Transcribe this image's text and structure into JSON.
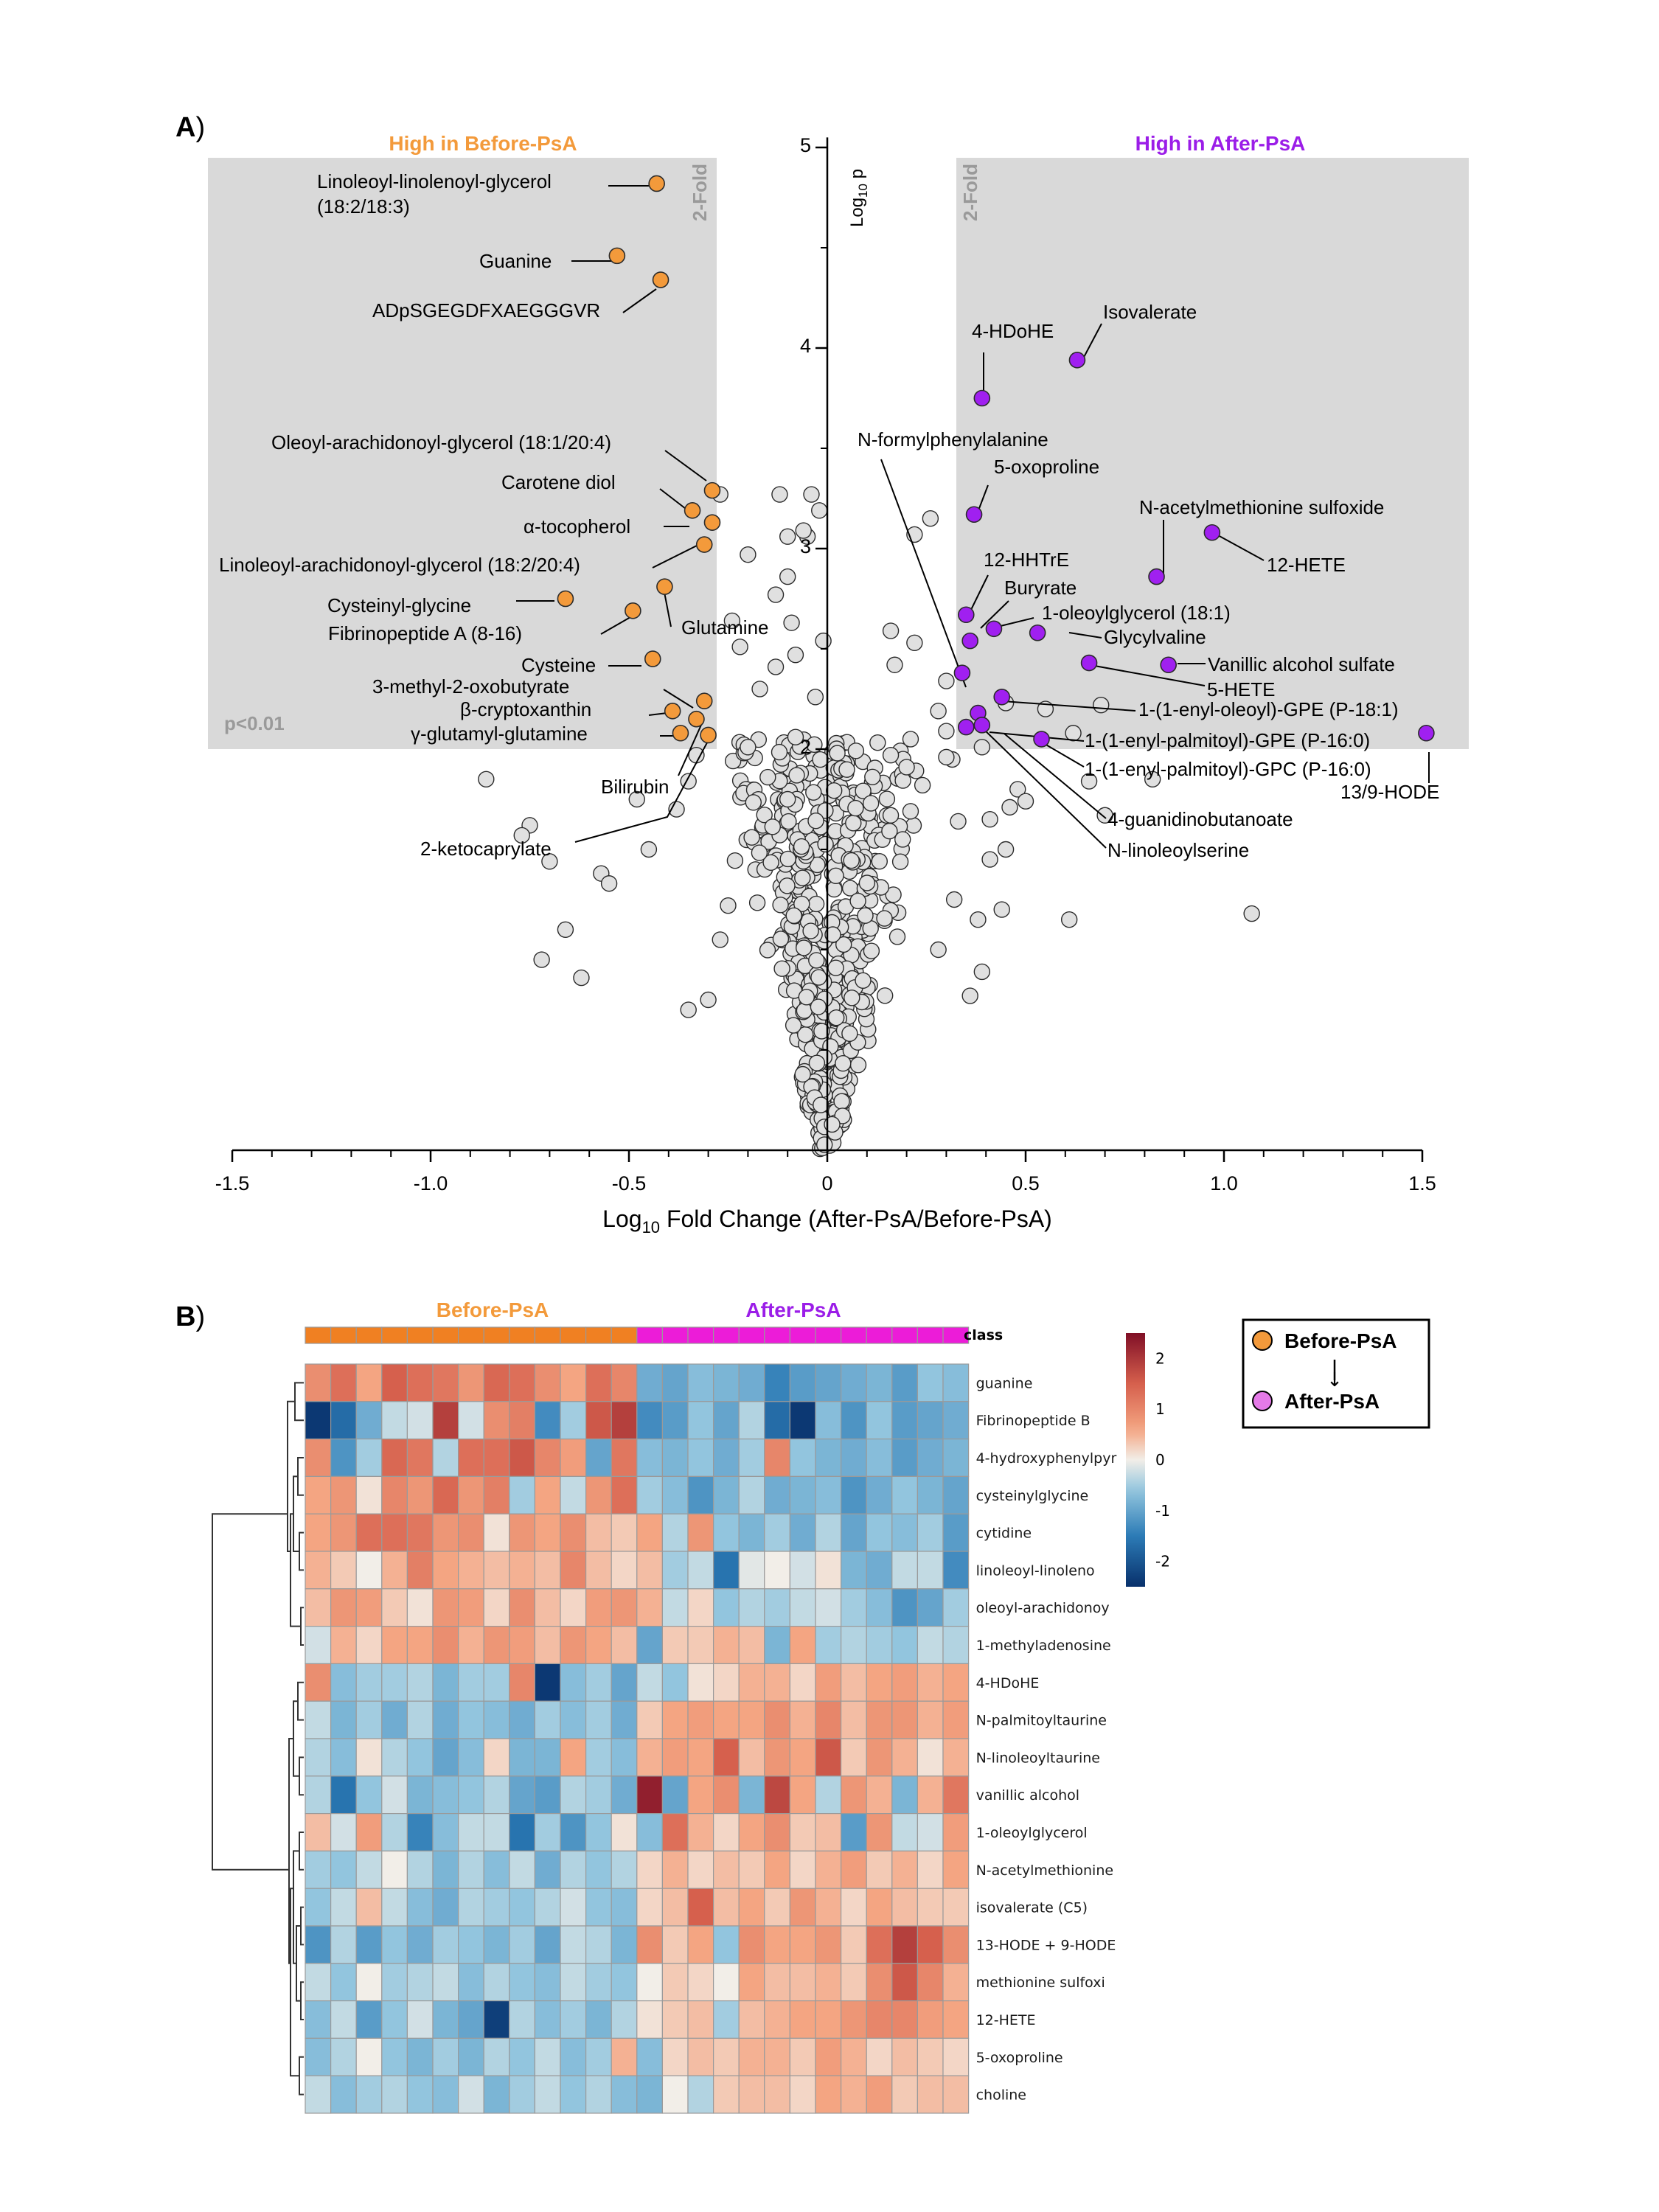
{
  "panel_a_label": "A",
  "panel_b_label": "B",
  "chart_data": [
    {
      "type": "scatter",
      "subtype": "volcano",
      "x_axis": {
        "label_prefix": "Log",
        "label_sub": "10",
        "label_suffix": " Fold Change (After-PsA/Before-PsA)",
        "ticks": [
          -1.5,
          -1.0,
          -0.5,
          0,
          0.5,
          1.0,
          1.5
        ],
        "tick_labels": [
          "-1.5",
          "-1.0",
          "-0.5",
          "0",
          "0.5",
          "1.0",
          "1.5"
        ],
        "range": [
          -1.5,
          1.5
        ]
      },
      "y_axis": {
        "label_prefix": "Log",
        "label_sub": "10",
        "label_suffix": " p",
        "ticks": [
          2,
          3,
          4,
          5
        ],
        "tick_labels": [
          "2",
          "3",
          "4",
          "5"
        ],
        "range": [
          0,
          5
        ]
      },
      "threshold_p": "p<0.01",
      "fold_label": "2-Fold",
      "region_left_title": "High in Before-PsA",
      "region_right_title": "High in After-PsA",
      "colors": {
        "before": "#f39a3b",
        "after": "#a020f0",
        "nonsig": "#e0e0e0",
        "region": "#d9d9d9",
        "before_title": "#f39a3b",
        "after_title": "#9b1de8"
      },
      "before_points": [
        {
          "name": "Linoleoyl-linolenoyl-glycerol",
          "name2": "(18:2/18:3)",
          "x": -0.43,
          "y": 4.82
        },
        {
          "name": "Guanine",
          "x": -0.53,
          "y": 4.46
        },
        {
          "name": "ADpSGEGDFXAEGGGVR",
          "x": -0.42,
          "y": 4.34
        },
        {
          "name": "Oleoyl-arachidonoyl-glycerol (18:1/20:4)",
          "x": -0.29,
          "y": 3.29
        },
        {
          "name": "Carotene diol",
          "x": -0.34,
          "y": 3.19
        },
        {
          "name": "α-tocopherol",
          "x": -0.29,
          "y": 3.13
        },
        {
          "name": "Linoleoyl-arachidonoyl-glycerol (18:2/20:4)",
          "x": -0.31,
          "y": 3.02
        },
        {
          "name": "Cysteinyl-glycine",
          "x": -0.66,
          "y": 2.75
        },
        {
          "name": "Glutamine",
          "x": -0.41,
          "y": 2.81
        },
        {
          "name": "Fibrinopeptide A (8-16)",
          "x": -0.49,
          "y": 2.69
        },
        {
          "name": "Cysteine",
          "x": -0.44,
          "y": 2.45
        },
        {
          "name": "3-methyl-2-oxobutyrate",
          "x": -0.31,
          "y": 2.24
        },
        {
          "name": "β-cryptoxanthin",
          "x": -0.39,
          "y": 2.19
        },
        {
          "name": "Bilirubin",
          "x": -0.33,
          "y": 2.15
        },
        {
          "name": "γ-glutamyl-glutamine",
          "x": -0.37,
          "y": 2.08
        },
        {
          "name": "2-ketocaprylate",
          "x": -0.3,
          "y": 2.07
        }
      ],
      "after_points": [
        {
          "name": "Isovalerate",
          "x": 0.63,
          "y": 3.94
        },
        {
          "name": "4-HDoHE",
          "x": 0.39,
          "y": 3.75
        },
        {
          "name": "N-formylphenylalanine",
          "x": 0.34,
          "y": 2.38
        },
        {
          "name": "5-oxoproline",
          "x": 0.37,
          "y": 3.17
        },
        {
          "name": "N-acetylmethionine sulfoxide",
          "x": 0.83,
          "y": 2.86
        },
        {
          "name": "12-HETE",
          "x": 0.97,
          "y": 3.08
        },
        {
          "name": "12-HHTrE",
          "x": 0.35,
          "y": 2.67
        },
        {
          "name": "Buryrate",
          "x": 0.36,
          "y": 2.54
        },
        {
          "name": "1-oleoylglycerol (18:1)",
          "x": 0.42,
          "y": 2.6
        },
        {
          "name": "Glycylvaline",
          "x": 0.53,
          "y": 2.58
        },
        {
          "name": "Vanillic alcohol sulfate",
          "x": 0.86,
          "y": 2.42
        },
        {
          "name": "5-HETE",
          "x": 0.66,
          "y": 2.43
        },
        {
          "name": "1-(1-enyl-oleoyl)-GPE (P-18:1)",
          "x": 0.44,
          "y": 2.26
        },
        {
          "name": "1-(1-enyl-palmitoyl)-GPE (P-16:0)",
          "x": 0.38,
          "y": 2.18
        },
        {
          "name": "1-(1-enyl-palmitoyl)-GPC (P-16:0)",
          "x": 0.54,
          "y": 2.05
        },
        {
          "name": "4-guanidinobutanoate",
          "x": 0.35,
          "y": 2.11
        },
        {
          "name": "N-linoleoylserine",
          "x": 0.39,
          "y": 2.12
        },
        {
          "name": "13/9-HODE",
          "x": 1.51,
          "y": 2.08
        }
      ],
      "nonsig_points": [
        [
          -0.86,
          1.85
        ],
        [
          -0.75,
          1.62
        ],
        [
          -0.77,
          1.57
        ],
        [
          -0.7,
          1.44
        ],
        [
          -0.72,
          0.95
        ],
        [
          -0.66,
          1.1
        ],
        [
          -0.57,
          1.38
        ],
        [
          -0.55,
          1.33
        ],
        [
          -0.62,
          0.86
        ],
        [
          -0.48,
          1.75
        ],
        [
          -0.45,
          1.5
        ],
        [
          -0.38,
          1.7
        ],
        [
          -0.35,
          1.84
        ],
        [
          -0.33,
          1.97
        ],
        [
          -0.2,
          2.01
        ],
        [
          -0.15,
          1.86
        ],
        [
          -0.1,
          1.75
        ],
        [
          -0.08,
          2.06
        ],
        [
          -0.25,
          1.22
        ],
        [
          -0.35,
          0.7
        ],
        [
          -0.3,
          0.75
        ],
        [
          -0.27,
          1.05
        ],
        [
          -0.17,
          2.3
        ],
        [
          -0.13,
          2.41
        ],
        [
          -0.24,
          2.64
        ],
        [
          -0.22,
          2.51
        ],
        [
          -0.09,
          2.63
        ],
        [
          -0.1,
          2.86
        ],
        [
          -0.13,
          2.77
        ],
        [
          -0.05,
          3.06
        ],
        [
          -0.12,
          3.27
        ],
        [
          -0.02,
          3.19
        ],
        [
          -0.04,
          3.27
        ],
        [
          -0.06,
          3.09
        ],
        [
          -0.08,
          2.47
        ],
        [
          -0.01,
          2.54
        ],
        [
          -0.27,
          3.27
        ],
        [
          -0.2,
          2.97
        ],
        [
          -0.1,
          3.06
        ],
        [
          -0.03,
          2.26
        ],
        [
          0.16,
          2.59
        ],
        [
          0.21,
          2.05
        ],
        [
          0.17,
          2.42
        ],
        [
          0.22,
          3.07
        ],
        [
          0.22,
          2.53
        ],
        [
          0.26,
          3.15
        ],
        [
          0.3,
          2.34
        ],
        [
          0.28,
          2.19
        ],
        [
          0.2,
          1.91
        ],
        [
          0.3,
          1.96
        ],
        [
          0.21,
          1.69
        ],
        [
          0.24,
          1.82
        ],
        [
          0.33,
          1.64
        ],
        [
          0.41,
          1.65
        ],
        [
          0.45,
          1.5
        ],
        [
          0.39,
          2.01
        ],
        [
          0.46,
          1.71
        ],
        [
          0.48,
          1.8
        ],
        [
          0.5,
          1.74
        ],
        [
          0.7,
          1.67
        ],
        [
          0.66,
          1.84
        ],
        [
          0.55,
          2.2
        ],
        [
          0.62,
          2.08
        ],
        [
          0.82,
          1.85
        ],
        [
          0.69,
          2.22
        ],
        [
          1.07,
          1.18
        ],
        [
          0.61,
          1.15
        ],
        [
          0.44,
          1.2
        ],
        [
          0.38,
          1.15
        ],
        [
          0.39,
          0.89
        ],
        [
          0.36,
          0.77
        ],
        [
          0.41,
          1.45
        ],
        [
          0.28,
          1.0
        ],
        [
          0.32,
          1.25
        ],
        [
          0.45,
          2.23
        ],
        [
          0.3,
          2.09
        ],
        [
          0.11,
          1.73
        ],
        [
          0.16,
          1.97
        ],
        [
          0.19,
          1.55
        ],
        [
          0.16,
          1.67
        ]
      ],
      "dense_seed": 7,
      "dense_count": 560
    },
    {
      "type": "heatmap",
      "title_before": "Before-PsA",
      "title_after": "After-PsA",
      "class_label": "class",
      "class_colors": {
        "before": "#f08022",
        "after": "#ec1cd8"
      },
      "n_before": 13,
      "n_after": 13,
      "rows": [
        "guanine",
        "Fibrinopeptide B",
        "4-hydroxyphenylpyr",
        "cysteinylglycine",
        "cytidine",
        "linoleoyl-linoleno",
        "oleoyl-arachidonoy",
        "1-methyladenosine",
        "4-HDoHE",
        "N-palmitoyltaurine",
        "N-linoleoyltaurine",
        "vanillic alcohol",
        "1-oleoylglycerol",
        "N-acetylmethionine",
        "isovalerate (C5)",
        "13-HODE + 9-HODE",
        "methionine sulfoxi",
        "12-HETE",
        "5-oxoproline",
        "choline"
      ],
      "values": [
        [
          0.9,
          1.3,
          0.6,
          1.5,
          1.3,
          1.2,
          0.8,
          1.4,
          1.3,
          0.9,
          0.6,
          1.3,
          1.0,
          -0.9,
          -1.0,
          -0.7,
          -0.8,
          -0.9,
          -1.4,
          -1.1,
          -1.0,
          -0.9,
          -0.8,
          -1.1,
          -0.6,
          -0.7
        ],
        [
          -2.4,
          -1.7,
          -0.9,
          -0.3,
          -0.2,
          1.9,
          -0.2,
          0.9,
          1.1,
          -1.3,
          -0.5,
          1.6,
          1.9,
          -1.3,
          -1.1,
          -0.6,
          -1.0,
          -0.4,
          -1.7,
          -2.4,
          -0.7,
          -1.2,
          -0.6,
          -1.1,
          -1.0,
          -0.9
        ],
        [
          0.9,
          -1.2,
          -0.5,
          1.4,
          1.2,
          -0.4,
          1.3,
          1.3,
          1.6,
          1.0,
          0.7,
          -1.0,
          1.2,
          -0.7,
          -0.8,
          -0.6,
          -0.9,
          -0.5,
          1.0,
          -0.6,
          -0.8,
          -0.9,
          -0.7,
          -1.1,
          -0.9,
          -0.8
        ],
        [
          0.6,
          0.8,
          0.1,
          1.0,
          0.8,
          1.4,
          0.8,
          1.1,
          -0.5,
          0.6,
          -0.3,
          0.8,
          1.3,
          -0.5,
          -0.7,
          -1.2,
          -0.8,
          -0.4,
          -0.9,
          -0.8,
          -0.7,
          -1.2,
          -0.9,
          -0.6,
          -0.8,
          -1.0
        ],
        [
          0.6,
          0.8,
          1.3,
          1.3,
          1.2,
          0.8,
          0.9,
          0.1,
          0.8,
          0.6,
          0.9,
          0.4,
          0.3,
          0.6,
          -0.4,
          0.8,
          -0.6,
          -0.8,
          -0.5,
          -0.9,
          -0.4,
          -1.0,
          -0.6,
          -0.7,
          -0.5,
          -1.1
        ],
        [
          0.5,
          0.3,
          0.0,
          0.5,
          1.1,
          0.6,
          0.5,
          0.4,
          0.5,
          0.4,
          1.0,
          0.4,
          0.2,
          0.4,
          -0.5,
          -0.3,
          -1.6,
          -0.1,
          0.0,
          -0.2,
          0.1,
          -0.8,
          -0.9,
          -0.3,
          -0.3,
          -1.3
        ],
        [
          0.4,
          0.8,
          0.7,
          0.3,
          0.1,
          0.8,
          0.7,
          0.2,
          0.9,
          0.4,
          0.2,
          0.7,
          0.8,
          0.5,
          -0.3,
          0.2,
          -0.6,
          -0.4,
          -0.5,
          -0.3,
          -0.2,
          -0.5,
          -0.7,
          -1.2,
          -1.0,
          -0.5
        ],
        [
          -0.2,
          0.5,
          0.2,
          0.6,
          0.6,
          0.9,
          0.5,
          0.8,
          0.7,
          0.4,
          0.8,
          0.6,
          0.4,
          -1.0,
          0.3,
          0.3,
          0.5,
          0.4,
          -0.8,
          0.6,
          -0.5,
          -0.4,
          -0.5,
          -0.6,
          -0.3,
          -0.4
        ],
        [
          0.9,
          -0.7,
          -0.5,
          -0.5,
          -0.4,
          -0.8,
          -0.5,
          -0.5,
          1.0,
          -2.4,
          -0.7,
          -0.5,
          -1.0,
          -0.3,
          -0.6,
          0.1,
          0.2,
          0.5,
          0.5,
          0.2,
          0.7,
          0.4,
          0.6,
          0.7,
          0.5,
          0.6
        ],
        [
          -0.3,
          -0.8,
          -0.5,
          -0.9,
          -0.4,
          -0.9,
          -0.6,
          -0.7,
          -0.9,
          -0.5,
          -0.7,
          -0.5,
          -0.9,
          0.3,
          0.6,
          0.7,
          0.6,
          0.6,
          0.9,
          0.5,
          1.0,
          0.4,
          0.8,
          0.8,
          0.5,
          0.7
        ],
        [
          -0.4,
          -0.7,
          0.1,
          -0.4,
          -0.6,
          -1.0,
          -0.7,
          0.2,
          -0.8,
          -0.8,
          0.6,
          -0.5,
          -0.7,
          0.5,
          0.7,
          0.6,
          1.5,
          0.4,
          0.8,
          0.6,
          1.6,
          0.3,
          0.8,
          0.5,
          0.1,
          0.5
        ],
        [
          -0.4,
          -1.6,
          -0.6,
          -0.2,
          -0.8,
          -0.7,
          -0.6,
          -0.4,
          -1.0,
          -1.1,
          -0.4,
          -0.5,
          -0.9,
          2.3,
          -1.0,
          0.6,
          0.9,
          -0.8,
          1.8,
          0.6,
          -0.4,
          0.8,
          0.5,
          -0.8,
          0.5,
          1.2
        ],
        [
          0.4,
          -0.2,
          0.7,
          -0.4,
          -1.4,
          -0.7,
          -0.3,
          -0.3,
          -1.6,
          -0.5,
          -1.2,
          -0.6,
          0.1,
          -0.7,
          1.3,
          0.5,
          0.2,
          0.6,
          0.9,
          0.3,
          0.4,
          -1.1,
          0.8,
          -0.3,
          -0.2,
          0.7
        ],
        [
          -0.5,
          -0.6,
          -0.3,
          0.0,
          -0.4,
          -0.8,
          -0.4,
          -0.7,
          -0.3,
          -0.9,
          -0.4,
          -0.6,
          -0.4,
          0.2,
          0.5,
          0.2,
          0.4,
          0.3,
          0.6,
          0.2,
          0.5,
          0.7,
          0.3,
          0.5,
          0.2,
          0.6
        ],
        [
          -0.6,
          -0.3,
          0.4,
          -0.3,
          -0.7,
          -0.9,
          -0.4,
          -0.5,
          -0.6,
          -0.4,
          -0.2,
          -0.6,
          -0.7,
          0.2,
          0.4,
          1.5,
          0.4,
          0.6,
          0.3,
          0.8,
          0.5,
          0.2,
          0.6,
          0.4,
          0.3,
          0.3
        ],
        [
          -1.2,
          -0.4,
          -1.1,
          -0.6,
          -0.9,
          -0.5,
          -0.6,
          -0.8,
          -0.5,
          -1.0,
          -0.3,
          -0.4,
          -0.8,
          0.9,
          0.3,
          0.6,
          -0.6,
          0.9,
          0.6,
          0.6,
          0.8,
          0.3,
          1.3,
          1.9,
          1.5,
          0.9
        ],
        [
          -0.3,
          -0.6,
          0.0,
          -0.5,
          -0.4,
          -0.3,
          -0.7,
          -0.4,
          -0.6,
          -0.7,
          -0.3,
          -0.5,
          -0.6,
          0.0,
          0.3,
          0.2,
          0.0,
          0.6,
          0.4,
          0.4,
          0.5,
          0.3,
          0.9,
          1.6,
          1.0,
          0.5
        ],
        [
          -0.7,
          -0.3,
          -1.1,
          -0.6,
          -0.2,
          -0.8,
          -1.0,
          -2.3,
          -0.4,
          -0.7,
          -0.5,
          -0.8,
          -0.4,
          0.1,
          0.3,
          0.4,
          -0.5,
          0.4,
          0.5,
          0.6,
          0.6,
          0.8,
          1.0,
          1.0,
          0.7,
          0.6
        ],
        [
          -0.7,
          -0.4,
          0.0,
          -0.6,
          -0.8,
          -0.5,
          -0.8,
          -0.4,
          -0.6,
          -0.3,
          -0.7,
          -0.5,
          0.5,
          -0.7,
          0.2,
          0.4,
          0.3,
          0.5,
          0.5,
          0.3,
          0.7,
          0.5,
          0.2,
          0.4,
          0.3,
          0.2
        ],
        [
          -0.3,
          -0.7,
          -0.5,
          -0.4,
          -0.6,
          -0.7,
          -0.2,
          -0.8,
          -0.5,
          -0.3,
          -0.6,
          -0.4,
          -0.7,
          -0.8,
          0.0,
          -0.4,
          0.3,
          0.4,
          0.4,
          0.2,
          0.6,
          0.5,
          0.7,
          0.3,
          0.4,
          0.4
        ]
      ],
      "colorbar_ticks": [
        2,
        1,
        0,
        -1,
        -2
      ],
      "colorbar_labels": [
        "2",
        "1",
        "0",
        "-1",
        "-2"
      ],
      "colorbar_range": [
        -2.5,
        2.5
      ],
      "legend": {
        "before": "Before-PsA",
        "after": "After-PsA",
        "arrow": "↓"
      }
    }
  ]
}
